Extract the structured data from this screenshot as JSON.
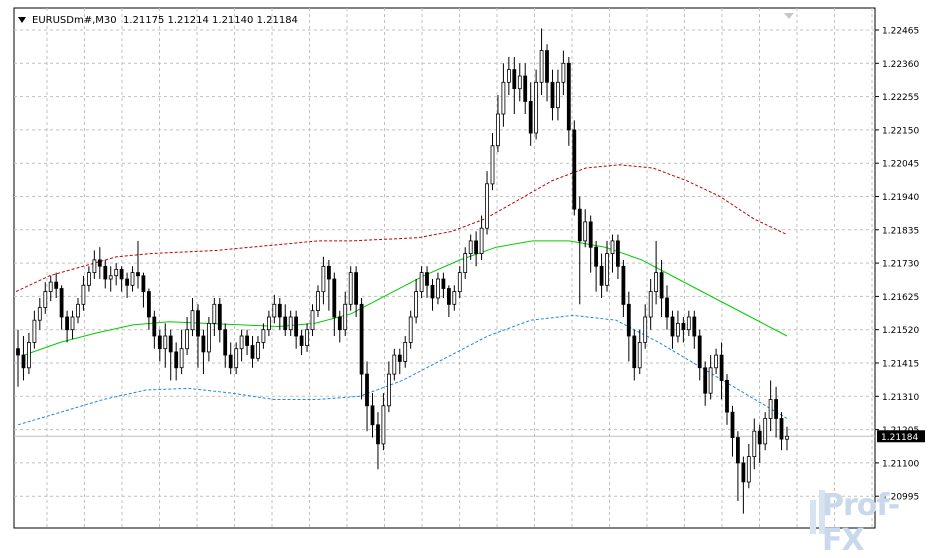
{
  "header": {
    "symbol": "EURUSDm#,M30",
    "ohlc": "1.21175 1.21214 1.21140 1.21184"
  },
  "price_label": "1.21184",
  "watermark": "Prof-FX",
  "colors": {
    "grid": "#c0c0c0",
    "axis": "#000000",
    "bull_body": "#ffffff",
    "bear_body": "#000000",
    "candle_outline": "#000000",
    "upper_band": "#c00000",
    "middle_band": "#00cc00",
    "lower_band": "#1e88e5",
    "price_line": "#c0c0c0"
  },
  "chart_data": {
    "type": "candlestick",
    "symbol": "EURUSDm#",
    "timeframe": "M30",
    "y_ticks": [
      "1.22465",
      "1.22360",
      "1.22255",
      "1.22150",
      "1.22045",
      "1.21940",
      "1.21835",
      "1.21730",
      "1.21625",
      "1.21520",
      "1.21415",
      "1.21310",
      "1.21205",
      "1.21100",
      "1.20995"
    ],
    "ylim": [
      1.2089,
      1.2254
    ],
    "current_price": 1.21184,
    "series": [
      {
        "name": "upper_band",
        "values": [
          1.2164,
          1.2169,
          1.2172,
          1.2175,
          1.2176,
          1.21765,
          1.2177,
          1.2178,
          1.2179,
          1.218,
          1.218,
          1.21805,
          1.2181,
          1.2183,
          1.2187,
          1.2193,
          1.2199,
          1.2203,
          1.2204,
          1.2203,
          1.2199,
          1.2194,
          1.2187,
          1.2182
        ]
      },
      {
        "name": "middle_band",
        "values": [
          1.2144,
          1.2148,
          1.2151,
          1.21535,
          1.21545,
          1.2154,
          1.21535,
          1.2153,
          1.2154,
          1.2157,
          1.2163,
          1.2169,
          1.2174,
          1.2178,
          1.218,
          1.218,
          1.2178,
          1.2174,
          1.2168,
          1.2162,
          1.2156,
          1.215
        ]
      },
      {
        "name": "lower_band",
        "values": [
          1.2122,
          1.2126,
          1.213,
          1.2133,
          1.21335,
          1.2132,
          1.213,
          1.213,
          1.2131,
          1.2136,
          1.2143,
          1.215,
          1.2155,
          1.21565,
          1.2155,
          1.2148,
          1.214,
          1.2132,
          1.2124
        ]
      }
    ],
    "candles": [
      [
        1.2146,
        1.2144,
        1.2134,
        1.2152
      ],
      [
        1.2144,
        1.214,
        1.2136,
        1.215
      ],
      [
        1.214,
        1.2148,
        1.2138,
        1.2151
      ],
      [
        1.2148,
        1.2155,
        1.2146,
        1.2158
      ],
      [
        1.2155,
        1.2159,
        1.2152,
        1.2162
      ],
      [
        1.2159,
        1.2164,
        1.2157,
        1.2167
      ],
      [
        1.2164,
        1.2167,
        1.2161,
        1.2169
      ],
      [
        1.2167,
        1.2165,
        1.2162,
        1.217
      ],
      [
        1.2165,
        1.2156,
        1.2152,
        1.2166
      ],
      [
        1.2156,
        1.2152,
        1.2148,
        1.2158
      ],
      [
        1.2152,
        1.2156,
        1.2149,
        1.2158
      ],
      [
        1.2156,
        1.216,
        1.2154,
        1.2162
      ],
      [
        1.216,
        1.2166,
        1.2158,
        1.2169
      ],
      [
        1.2166,
        1.217,
        1.2164,
        1.2172
      ],
      [
        1.217,
        1.2174,
        1.2168,
        1.2177
      ],
      [
        1.2174,
        1.2172,
        1.2168,
        1.2178
      ],
      [
        1.2172,
        1.2168,
        1.2165,
        1.2174
      ],
      [
        1.2168,
        1.2169,
        1.2164,
        1.2172
      ],
      [
        1.2169,
        1.2171,
        1.2166,
        1.2173
      ],
      [
        1.2171,
        1.2168,
        1.2164,
        1.2172
      ],
      [
        1.2168,
        1.2166,
        1.2162,
        1.217
      ],
      [
        1.2166,
        1.217,
        1.2164,
        1.2172
      ],
      [
        1.217,
        1.2169,
        1.2165,
        1.218
      ],
      [
        1.2169,
        1.2164,
        1.2159,
        1.217
      ],
      [
        1.2164,
        1.2156,
        1.2152,
        1.2165
      ],
      [
        1.2156,
        1.215,
        1.2146,
        1.2158
      ],
      [
        1.215,
        1.2146,
        1.2142,
        1.2152
      ],
      [
        1.2146,
        1.215,
        1.214,
        1.2154
      ],
      [
        1.215,
        1.2145,
        1.2136,
        1.2152
      ],
      [
        1.2145,
        1.214,
        1.2136,
        1.2148
      ],
      [
        1.214,
        1.2146,
        1.2138,
        1.2152
      ],
      [
        1.2146,
        1.2152,
        1.2144,
        1.2156
      ],
      [
        1.2152,
        1.2158,
        1.215,
        1.2162
      ],
      [
        1.2158,
        1.215,
        1.214,
        1.216
      ],
      [
        1.215,
        1.2145,
        1.2138,
        1.2152
      ],
      [
        1.2145,
        1.2154,
        1.2142,
        1.2156
      ],
      [
        1.2154,
        1.216,
        1.215,
        1.2162
      ],
      [
        1.216,
        1.2152,
        1.2148,
        1.2162
      ],
      [
        1.2152,
        1.2144,
        1.214,
        1.2154
      ],
      [
        1.2144,
        1.214,
        1.2138,
        1.2148
      ],
      [
        1.214,
        1.2146,
        1.2138,
        1.2148
      ],
      [
        1.2146,
        1.215,
        1.2142,
        1.2152
      ],
      [
        1.215,
        1.2147,
        1.2144,
        1.2152
      ],
      [
        1.2147,
        1.2143,
        1.214,
        1.215
      ],
      [
        1.2143,
        1.2148,
        1.2142,
        1.215
      ],
      [
        1.2148,
        1.2152,
        1.2146,
        1.2154
      ],
      [
        1.2152,
        1.2156,
        1.215,
        1.2158
      ],
      [
        1.2156,
        1.216,
        1.2154,
        1.2163
      ],
      [
        1.216,
        1.2156,
        1.2152,
        1.2162
      ],
      [
        1.2156,
        1.2152,
        1.215,
        1.216
      ],
      [
        1.2152,
        1.2156,
        1.215,
        1.2158
      ],
      [
        1.2156,
        1.215,
        1.2146,
        1.2158
      ],
      [
        1.215,
        1.2147,
        1.2144,
        1.2152
      ],
      [
        1.2147,
        1.2152,
        1.2145,
        1.2154
      ],
      [
        1.2152,
        1.2158,
        1.215,
        1.216
      ],
      [
        1.2158,
        1.2164,
        1.2156,
        1.2166
      ],
      [
        1.2164,
        1.2172,
        1.216,
        1.2175
      ],
      [
        1.2172,
        1.2168,
        1.2158,
        1.2174
      ],
      [
        1.2168,
        1.2156,
        1.215,
        1.217
      ],
      [
        1.2156,
        1.2152,
        1.2148,
        1.2158
      ],
      [
        1.2152,
        1.216,
        1.215,
        1.2164
      ],
      [
        1.216,
        1.217,
        1.2158,
        1.2172
      ],
      [
        1.217,
        1.216,
        1.2156,
        1.2172
      ],
      [
        1.216,
        1.2138,
        1.213,
        1.2162
      ],
      [
        1.2138,
        1.2128,
        1.212,
        1.2142
      ],
      [
        1.2128,
        1.2122,
        1.2118,
        1.2132
      ],
      [
        1.2122,
        1.2116,
        1.2108,
        1.2126
      ],
      [
        1.2116,
        1.2128,
        1.2114,
        1.2132
      ],
      [
        1.2128,
        1.2138,
        1.2126,
        1.2142
      ],
      [
        1.2138,
        1.2144,
        1.2136,
        1.2146
      ],
      [
        1.2144,
        1.2142,
        1.2138,
        1.2146
      ],
      [
        1.2142,
        1.2148,
        1.214,
        1.215
      ],
      [
        1.2148,
        1.2156,
        1.2146,
        1.2158
      ],
      [
        1.2156,
        1.2164,
        1.2154,
        1.2168
      ],
      [
        1.2164,
        1.217,
        1.2162,
        1.2172
      ],
      [
        1.217,
        1.2166,
        1.2162,
        1.2172
      ],
      [
        1.2166,
        1.2162,
        1.2158,
        1.2168
      ],
      [
        1.2162,
        1.2168,
        1.216,
        1.217
      ],
      [
        1.2168,
        1.2165,
        1.2162,
        1.217
      ],
      [
        1.2165,
        1.216,
        1.2156,
        1.2166
      ],
      [
        1.216,
        1.2164,
        1.2158,
        1.2166
      ],
      [
        1.2164,
        1.217,
        1.2162,
        1.2172
      ],
      [
        1.217,
        1.2176,
        1.2168,
        1.2178
      ],
      [
        1.2176,
        1.218,
        1.2174,
        1.2182
      ],
      [
        1.218,
        1.2176,
        1.2172,
        1.2183
      ],
      [
        1.2176,
        1.2184,
        1.2174,
        1.2188
      ],
      [
        1.2184,
        1.2198,
        1.2182,
        1.2202
      ],
      [
        1.2198,
        1.221,
        1.2196,
        1.2214
      ],
      [
        1.221,
        1.222,
        1.2208,
        1.2226
      ],
      [
        1.222,
        1.223,
        1.2216,
        1.2236
      ],
      [
        1.223,
        1.2234,
        1.2226,
        1.2238
      ],
      [
        1.2234,
        1.2228,
        1.222,
        1.2238
      ],
      [
        1.2228,
        1.2232,
        1.2224,
        1.2236
      ],
      [
        1.2232,
        1.2224,
        1.222,
        1.2236
      ],
      [
        1.2224,
        1.2214,
        1.221,
        1.223
      ],
      [
        1.2214,
        1.223,
        1.2212,
        1.2234
      ],
      [
        1.223,
        1.224,
        1.2226,
        1.2247
      ],
      [
        1.224,
        1.223,
        1.2224,
        1.2242
      ],
      [
        1.223,
        1.2222,
        1.2218,
        1.2234
      ],
      [
        1.2222,
        1.223,
        1.2218,
        1.2234
      ],
      [
        1.223,
        1.2236,
        1.2226,
        1.224
      ],
      [
        1.2236,
        1.2215,
        1.221,
        1.2238
      ],
      [
        1.2215,
        1.219,
        1.2188,
        1.2218
      ],
      [
        1.219,
        1.218,
        1.216,
        1.2194
      ],
      [
        1.218,
        1.2186,
        1.2178,
        1.219
      ],
      [
        1.2186,
        1.2178,
        1.217,
        1.2188
      ],
      [
        1.2178,
        1.2172,
        1.2164,
        1.218
      ],
      [
        1.2172,
        1.2166,
        1.2162,
        1.2176
      ],
      [
        1.2166,
        1.2176,
        1.2164,
        1.218
      ],
      [
        1.2176,
        1.218,
        1.217,
        1.2182
      ],
      [
        1.218,
        1.2172,
        1.2168,
        1.2182
      ],
      [
        1.2172,
        1.216,
        1.2156,
        1.2174
      ],
      [
        1.216,
        1.215,
        1.2142,
        1.2164
      ],
      [
        1.215,
        1.214,
        1.2136,
        1.2152
      ],
      [
        1.214,
        1.2148,
        1.2138,
        1.2152
      ],
      [
        1.2148,
        1.2156,
        1.2146,
        1.216
      ],
      [
        1.2156,
        1.2164,
        1.2152,
        1.2168
      ],
      [
        1.2164,
        1.217,
        1.216,
        1.218
      ],
      [
        1.217,
        1.2162,
        1.2156,
        1.2174
      ],
      [
        1.2162,
        1.2156,
        1.2152,
        1.2166
      ],
      [
        1.2156,
        1.215,
        1.2146,
        1.2158
      ],
      [
        1.215,
        1.2154,
        1.2148,
        1.2158
      ],
      [
        1.2154,
        1.2152,
        1.2148,
        1.2156
      ],
      [
        1.2152,
        1.2156,
        1.215,
        1.2158
      ],
      [
        1.2156,
        1.215,
        1.2146,
        1.2158
      ],
      [
        1.215,
        1.214,
        1.2136,
        1.2152
      ],
      [
        1.214,
        1.2132,
        1.2128,
        1.2142
      ],
      [
        1.2132,
        1.214,
        1.213,
        1.2144
      ],
      [
        1.214,
        1.2144,
        1.2138,
        1.2146
      ],
      [
        1.2144,
        1.2136,
        1.213,
        1.2148
      ],
      [
        1.2136,
        1.2126,
        1.2122,
        1.2138
      ],
      [
        1.2126,
        1.2118,
        1.2112,
        1.2128
      ],
      [
        1.2118,
        1.211,
        1.2098,
        1.212
      ],
      [
        1.211,
        1.2104,
        1.2094,
        1.2112
      ],
      [
        1.2104,
        1.2112,
        1.2102,
        1.2116
      ],
      [
        1.2112,
        1.212,
        1.2108,
        1.2124
      ],
      [
        1.212,
        1.2116,
        1.211,
        1.2122
      ],
      [
        1.2116,
        1.2124,
        1.2114,
        1.2126
      ],
      [
        1.2124,
        1.213,
        1.212,
        1.2136
      ],
      [
        1.213,
        1.2124,
        1.2118,
        1.2134
      ],
      [
        1.2124,
        1.21175,
        1.2114,
        1.2126
      ],
      [
        1.21175,
        1.21184,
        1.2114,
        1.21214
      ]
    ]
  }
}
